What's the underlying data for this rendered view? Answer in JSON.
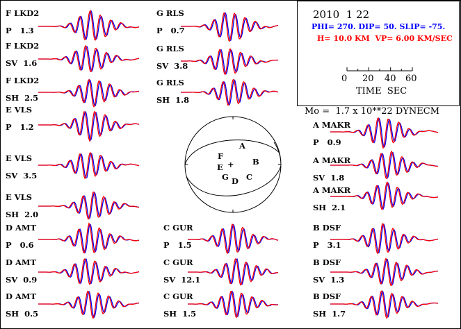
{
  "header": {
    "date": "2010  1 22",
    "mechanism": "PHI= 270. DIP= 50. SLIP= -75.",
    "depth_velocity": "H= 10.0 KM  VP= 6.00 KM/SEC",
    "scale_ticks": [
      "0",
      "20",
      "40",
      "60"
    ],
    "scale_label": "TIME  SEC",
    "moment": "Mo =  1.7 x 10**22 DYNECM"
  },
  "colors": {
    "observed": "#ff0000",
    "synthetic": "#0000ff",
    "text_blue": "#0000ff",
    "text_red": "#ff0000"
  },
  "beachball": {
    "stations": [
      "A",
      "B",
      "C",
      "D",
      "E",
      "F",
      "G"
    ],
    "center_mark": "+"
  },
  "traces": [
    {
      "station": "F LKD2",
      "comp": "P",
      "amp": "1.3"
    },
    {
      "station": "F LKD2",
      "comp": "SV",
      "amp": "1.6"
    },
    {
      "station": "F LKD2",
      "comp": "SH",
      "amp": "2.5"
    },
    {
      "station": "E VLS",
      "comp": "P",
      "amp": "1.2"
    },
    {
      "station": "E VLS",
      "comp": "SV",
      "amp": "3.5"
    },
    {
      "station": "E VLS",
      "comp": "SH",
      "amp": "2.0"
    },
    {
      "station": "D AMT",
      "comp": "P",
      "amp": "0.6"
    },
    {
      "station": "D AMT",
      "comp": "SV",
      "amp": "0.9"
    },
    {
      "station": "D AMT",
      "comp": "SH",
      "amp": "0.5"
    },
    {
      "station": "G RLS",
      "comp": "P",
      "amp": "0.7"
    },
    {
      "station": "G RLS",
      "comp": "SV",
      "amp": "3.8"
    },
    {
      "station": "G RLS",
      "comp": "SH",
      "amp": "1.8"
    },
    {
      "station": "C GUR",
      "comp": "P",
      "amp": "1.5"
    },
    {
      "station": "C GUR",
      "comp": "SV",
      "amp": "12.1"
    },
    {
      "station": "C GUR",
      "comp": "SH",
      "amp": "1.5"
    },
    {
      "station": "A MAKR",
      "comp": "P",
      "amp": "0.9"
    },
    {
      "station": "A MAKR",
      "comp": "SV",
      "amp": "1.8"
    },
    {
      "station": "A MAKR",
      "comp": "SH",
      "amp": "2.1"
    },
    {
      "station": "B DSF",
      "comp": "P",
      "amp": "3.1"
    },
    {
      "station": "B DSF",
      "comp": "SV",
      "amp": "1.3"
    },
    {
      "station": "B DSF",
      "comp": "SH",
      "amp": "1.7"
    }
  ]
}
